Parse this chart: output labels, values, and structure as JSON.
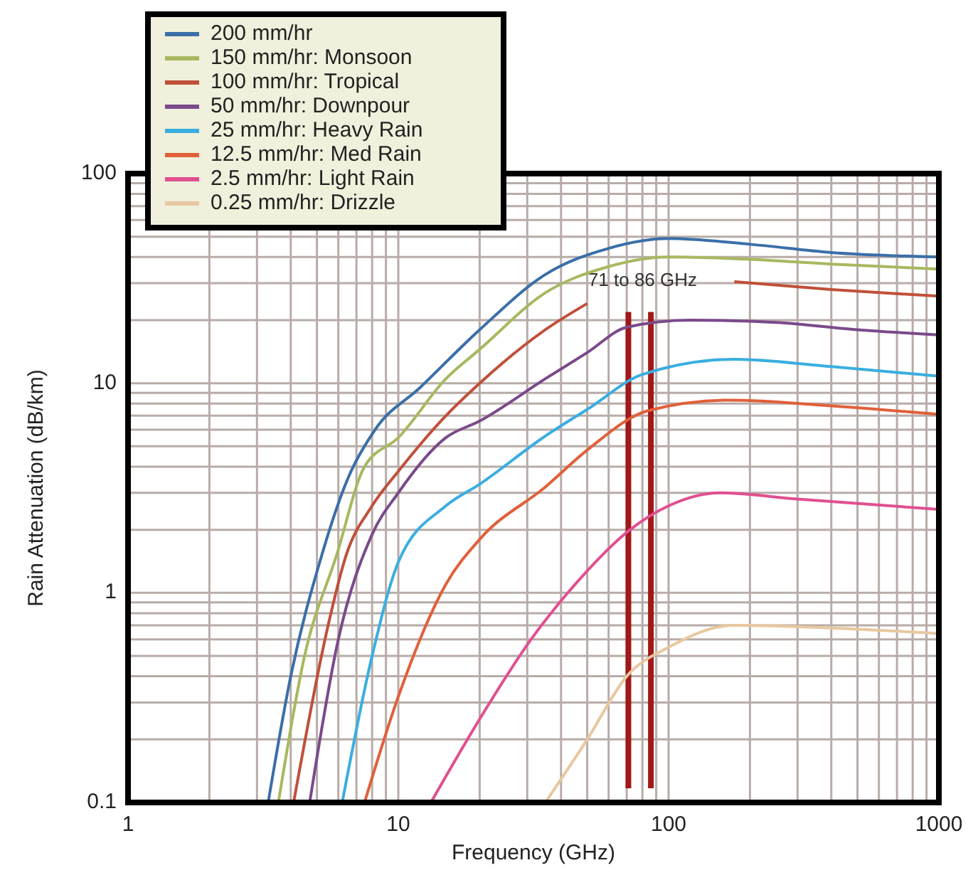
{
  "chart_data": {
    "type": "line",
    "xlabel": "Frequency (GHz)",
    "ylabel": "Rain Attenuation (dB/km)",
    "log": "xy",
    "grid": true,
    "legend": "top left",
    "xlim": [
      1,
      1000
    ],
    "xticks": [
      1,
      10,
      100,
      1000
    ],
    "ylim": [
      0.1,
      100
    ],
    "yticks": [
      0.1,
      1,
      10,
      100
    ],
    "series": [
      {
        "name": "200 mm/hr",
        "color": "#3a6fa8",
        "x": [
          3.3,
          4,
          5.2,
          6.5,
          8.2,
          12,
          20,
          35,
          60,
          100,
          200,
          400,
          1000
        ],
        "values": [
          0.1,
          0.4,
          1.5,
          3.5,
          6,
          9.5,
          18,
          33,
          44,
          49,
          46,
          42,
          40
        ]
      },
      {
        "name": "150 mm/hr: Monsoon",
        "color": "#a8b860",
        "x": [
          3.6,
          4.5,
          5.9,
          7.5,
          10,
          15,
          20,
          35,
          60,
          100,
          200,
          400,
          1000
        ],
        "values": [
          0.1,
          0.5,
          1.5,
          4,
          5.5,
          10.5,
          14.5,
          27,
          36,
          40,
          39,
          37,
          35
        ]
      },
      {
        "name": "100 mm/hr: Tropical",
        "color": "#c0503a",
        "x": [
          4.1,
          5.5,
          6.4,
          8,
          10,
          15,
          20,
          35,
          50,
          100,
          175,
          400,
          1000
        ],
        "values": [
          0.1,
          0.7,
          1.5,
          2.6,
          3.8,
          7,
          10,
          18,
          24,
          null,
          30.5,
          28,
          26
        ]
      },
      {
        "name": "50 mm/hr: Downpour",
        "color": "#7a4a8a",
        "x": [
          4.7,
          6,
          8,
          10,
          15,
          20,
          35,
          50,
          70,
          120,
          250,
          500,
          1000
        ],
        "values": [
          0.1,
          0.6,
          1.9,
          3,
          5.5,
          6.6,
          10.5,
          14,
          18.5,
          20,
          19.5,
          18,
          17
        ]
      },
      {
        "name": "25 mm/hr: Heavy Rain",
        "color": "#3aaee0",
        "x": [
          6.2,
          8,
          10,
          15,
          20,
          35,
          50,
          80,
          175,
          400,
          1000
        ],
        "values": [
          0.1,
          0.5,
          1.4,
          2.6,
          3.3,
          5.6,
          7.5,
          11,
          13,
          12,
          10.8
        ]
      },
      {
        "name": "12.5 mm/hr: Med Rain",
        "color": "#e0603a",
        "x": [
          7.5,
          10,
          15,
          20,
          35,
          50,
          84,
          168,
          400,
          1000
        ],
        "values": [
          0.1,
          0.32,
          1.1,
          1.8,
          3.2,
          4.8,
          7.4,
          8.3,
          7.8,
          7.1
        ]
      },
      {
        "name": "2.5 mm/hr: Light Rain",
        "color": "#e05090",
        "x": [
          13.2,
          20,
          31,
          46,
          72,
          100,
          155,
          300,
          1000
        ],
        "values": [
          0.1,
          0.25,
          0.6,
          1.13,
          2,
          2.6,
          3,
          2.8,
          2.5
        ]
      },
      {
        "name": "0.25 mm/hr: Drizzle",
        "color": "#e8c8a0",
        "x": [
          35,
          50,
          70,
          100,
          175,
          400,
          1000
        ],
        "values": [
          0.1,
          0.2,
          0.4,
          0.55,
          0.7,
          0.68,
          0.64
        ]
      }
    ],
    "ref_lines": [
      {
        "axis": "x",
        "value": 71,
        "color": "#a01818",
        "label": "71 to 86 GHz"
      },
      {
        "axis": "x",
        "value": 86,
        "color": "#a01818"
      }
    ]
  }
}
